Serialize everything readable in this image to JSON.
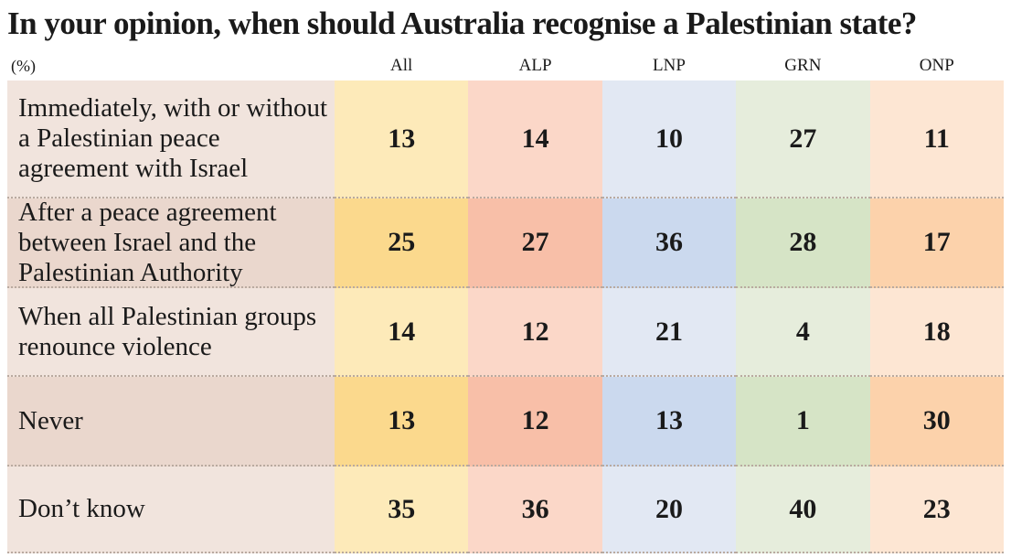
{
  "header": {
    "title": "In your opinion, when should Australia recognise a Palestinian state?",
    "unit": "(%)"
  },
  "table": {
    "columns": [
      "All",
      "ALP",
      "LNP",
      "GRN",
      "ONP"
    ],
    "rows": [
      {
        "label": "Immediately, with or without a Palestinian peace agreement with Israel",
        "values": [
          13,
          14,
          10,
          27,
          11
        ]
      },
      {
        "label": "After a peace agreement between Israel and the Palestinian Authority",
        "values": [
          25,
          27,
          36,
          28,
          17
        ]
      },
      {
        "label": "When all Palestinian groups renounce violence",
        "values": [
          14,
          12,
          21,
          4,
          18
        ]
      },
      {
        "label": "Never",
        "values": [
          13,
          12,
          13,
          1,
          30
        ]
      },
      {
        "label": "Don’t know",
        "values": [
          35,
          36,
          20,
          40,
          23
        ]
      }
    ]
  }
}
